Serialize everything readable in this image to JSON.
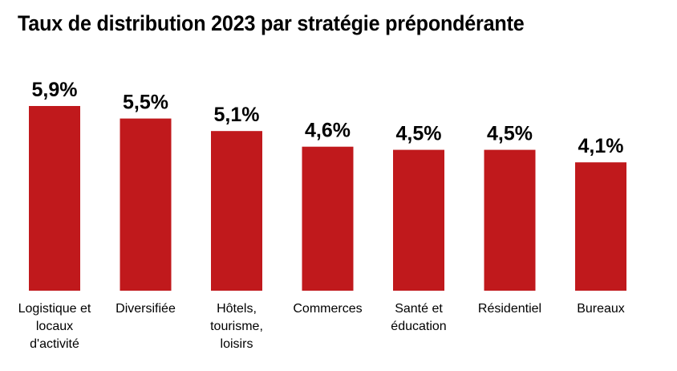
{
  "chart_data": {
    "type": "bar",
    "title": "Taux de distribution 2023 par stratégie prépondérante",
    "xlabel": "",
    "ylabel": "",
    "categories": [
      "Logistique et locaux d'activité",
      "Diversifiée",
      "Hôtels, tourisme, loisirs",
      "Commerces",
      "Santé et éducation",
      "Résidentiel",
      "Bureaux"
    ],
    "category_lines": [
      [
        "Logistique et",
        "locaux",
        "d'activité"
      ],
      [
        "Diversifiée"
      ],
      [
        "Hôtels,",
        "tourisme,",
        "loisirs"
      ],
      [
        "Commerces"
      ],
      [
        "Santé et",
        "éducation"
      ],
      [
        "Résidentiel"
      ],
      [
        "Bureaux"
      ]
    ],
    "values": [
      5.9,
      5.5,
      5.1,
      4.6,
      4.5,
      4.5,
      4.1
    ],
    "data_labels": [
      "5,9%",
      "5,5%",
      "5,1%",
      "4,6%",
      "4,5%",
      "4,5%",
      "4,1%"
    ],
    "unit": "%",
    "ylim": [
      0,
      5.9
    ],
    "grid": false,
    "legend": "none",
    "bar_color": "#C0191C"
  }
}
